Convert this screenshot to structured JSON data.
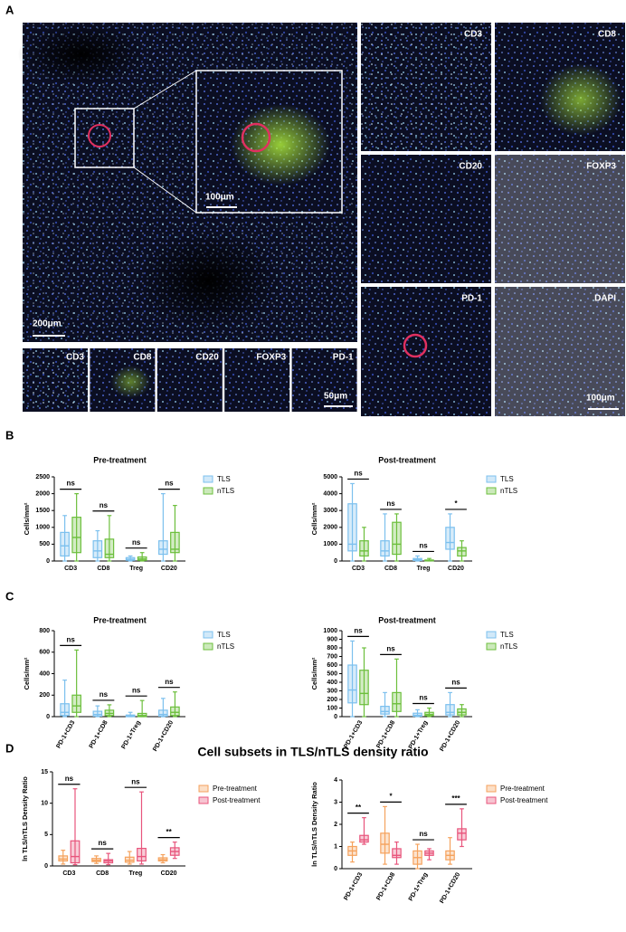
{
  "panel_labels": [
    "A",
    "B",
    "C",
    "D"
  ],
  "images": {
    "main_scale": "200μm",
    "inset_scale": "100μm",
    "strip": [
      "CD3",
      "CD8",
      "CD20",
      "FOXP3",
      "PD-1"
    ],
    "strip_scale": "50μm",
    "grid": [
      "CD3",
      "CD8",
      "CD20",
      "FOXP3",
      "PD-1",
      "DAPI"
    ],
    "grid_scale": "100μm"
  },
  "section_title": "Cell subsets in TLS/nTLS density ratio",
  "chart_data": [
    {
      "type": "box",
      "title": "Pre-treatment",
      "y_label": "Cells/mm²",
      "categories": [
        "CD3",
        "CD8",
        "Treg",
        "CD20"
      ],
      "rotate_labels": false,
      "legend": "right",
      "series": [
        {
          "name": "TLS",
          "color": "#7cc0ee",
          "values": [
            [
              0,
              150,
              450,
              850,
              1350
            ],
            [
              0,
              100,
              300,
              600,
              900
            ],
            [
              0,
              20,
              50,
              100,
              150
            ],
            [
              0,
              200,
              350,
              600,
              2000
            ]
          ]
        },
        {
          "name": "nTLS",
          "color": "#6cbf3c",
          "values": [
            [
              0,
              250,
              700,
              1300,
              2000
            ],
            [
              0,
              100,
              200,
              650,
              1350
            ],
            [
              0,
              20,
              60,
              120,
              250
            ],
            [
              0,
              250,
              350,
              850,
              1650
            ]
          ]
        }
      ],
      "ylim": [
        0,
        2500
      ],
      "yticks": [
        0,
        500,
        1000,
        1500,
        2000,
        2500
      ],
      "annotations": [
        "ns",
        "ns",
        "ns",
        "ns"
      ]
    },
    {
      "type": "box",
      "title": "Post-treatment",
      "y_label": "Cells/mm²",
      "categories": [
        "CD3",
        "CD8",
        "Treg",
        "CD20"
      ],
      "rotate_labels": false,
      "legend": "right",
      "series": [
        {
          "name": "TLS",
          "color": "#7cc0ee",
          "values": [
            [
              0,
              600,
              1000,
              3400,
              4600
            ],
            [
              0,
              300,
              600,
              1200,
              2800
            ],
            [
              0,
              30,
              80,
              150,
              300
            ],
            [
              0,
              700,
              1100,
              2000,
              2800
            ]
          ]
        },
        {
          "name": "nTLS",
          "color": "#6cbf3c",
          "values": [
            [
              0,
              300,
              600,
              1200,
              2000
            ],
            [
              0,
              400,
              1000,
              2300,
              2800
            ],
            [
              0,
              10,
              30,
              60,
              150
            ],
            [
              0,
              300,
              600,
              800,
              1200
            ]
          ]
        }
      ],
      "ylim": [
        0,
        5000
      ],
      "yticks": [
        0,
        1000,
        2000,
        3000,
        4000,
        5000
      ],
      "annotations": [
        "ns",
        "ns",
        "ns",
        "*"
      ]
    },
    {
      "type": "box",
      "title": "Pre-treatment",
      "y_label": "Cells/mm²",
      "categories": [
        "PD-1+CD3",
        "PD-1+CD8",
        "PD-1+Treg",
        "PD-1+CD20"
      ],
      "rotate_labels": true,
      "legend": "right",
      "series": [
        {
          "name": "TLS",
          "color": "#7cc0ee",
          "values": [
            [
              0,
              10,
              40,
              120,
              340
            ],
            [
              0,
              5,
              20,
              50,
              100
            ],
            [
              0,
              0,
              5,
              15,
              40
            ],
            [
              0,
              5,
              20,
              60,
              170
            ]
          ]
        },
        {
          "name": "nTLS",
          "color": "#6cbf3c",
          "values": [
            [
              0,
              40,
              100,
              200,
              620
            ],
            [
              0,
              10,
              30,
              60,
              110
            ],
            [
              0,
              0,
              10,
              30,
              150
            ],
            [
              0,
              10,
              40,
              90,
              230
            ]
          ]
        }
      ],
      "ylim": [
        0,
        800
      ],
      "yticks": [
        0,
        200,
        400,
        600,
        800
      ],
      "annotations": [
        "ns",
        "ns",
        "ns",
        "ns"
      ]
    },
    {
      "type": "box",
      "title": "Post-treatment",
      "y_label": "Cells/mm²",
      "categories": [
        "PD-1+CD3",
        "PD-1+CD8",
        "PD-1+Treg",
        "PD-1+CD20"
      ],
      "rotate_labels": true,
      "legend": "right",
      "series": [
        {
          "name": "TLS",
          "color": "#7cc0ee",
          "values": [
            [
              0,
              160,
              310,
              600,
              880
            ],
            [
              0,
              30,
              60,
              120,
              280
            ],
            [
              0,
              5,
              15,
              40,
              80
            ],
            [
              0,
              20,
              50,
              140,
              280
            ]
          ]
        },
        {
          "name": "nTLS",
          "color": "#6cbf3c",
          "values": [
            [
              0,
              140,
              270,
              540,
              800
            ],
            [
              0,
              60,
              150,
              280,
              670
            ],
            [
              0,
              10,
              25,
              50,
              100
            ],
            [
              0,
              20,
              50,
              90,
              140
            ]
          ]
        }
      ],
      "ylim": [
        0,
        1000
      ],
      "yticks": [
        0,
        100,
        200,
        300,
        400,
        500,
        600,
        700,
        800,
        900,
        1000
      ],
      "annotations": [
        "ns",
        "ns",
        "ns",
        "ns"
      ]
    },
    {
      "type": "box",
      "y_label": "ln TLS/nTLS Density Ratio",
      "categories": [
        "CD3",
        "CD8",
        "Treg",
        "CD20"
      ],
      "rotate_labels": false,
      "legend": "right",
      "series": [
        {
          "name": "Pre-treatment",
          "color": "#f5a25d",
          "values": [
            [
              0.3,
              0.8,
              1.1,
              1.6,
              2.5
            ],
            [
              0.4,
              0.7,
              0.9,
              1.2,
              1.6
            ],
            [
              0.3,
              0.6,
              0.9,
              1.4,
              2.3
            ],
            [
              0.5,
              0.8,
              1.0,
              1.3,
              1.8
            ]
          ]
        },
        {
          "name": "Post-treatment",
          "color": "#e8557c",
          "values": [
            [
              0.2,
              0.5,
              1.5,
              4,
              12.3
            ],
            [
              0.2,
              0.5,
              0.8,
              1,
              2
            ],
            [
              0.3,
              0.8,
              1.5,
              2.8,
              11.8
            ],
            [
              1.2,
              1.7,
              2.3,
              2.9,
              3.8
            ]
          ]
        }
      ],
      "ylim": [
        0,
        15
      ],
      "yticks": [
        0,
        5,
        10,
        15
      ],
      "annotations": [
        "ns",
        "ns",
        "ns",
        "**"
      ]
    },
    {
      "type": "box",
      "y_label": "ln TLS/nTLS Density Ratio",
      "categories": [
        "PD-1+CD3",
        "PD-1+CD8",
        "PD-1+Treg",
        "PD-1+CD20"
      ],
      "rotate_labels": true,
      "legend": "right",
      "series": [
        {
          "name": "Pre-treatment",
          "color": "#f5a25d",
          "values": [
            [
              0.3,
              0.6,
              0.8,
              1.0,
              1.2
            ],
            [
              0.2,
              0.7,
              1.1,
              1.6,
              2.8
            ],
            [
              0,
              0.2,
              0.5,
              0.8,
              1.1
            ],
            [
              0.2,
              0.4,
              0.6,
              0.8,
              1.4
            ]
          ]
        },
        {
          "name": "Post-treatment",
          "color": "#e8557c",
          "values": [
            [
              1.1,
              1.2,
              1.3,
              1.5,
              2.3
            ],
            [
              0.2,
              0.5,
              0.6,
              0.9,
              1.2
            ],
            [
              0.4,
              0.6,
              0.7,
              0.8,
              0.9
            ],
            [
              1,
              1.3,
              1.6,
              1.8,
              2.7
            ]
          ]
        }
      ],
      "ylim": [
        0,
        4
      ],
      "yticks": [
        0,
        1,
        2,
        3,
        4
      ],
      "annotations": [
        "**",
        "*",
        "ns",
        "***"
      ]
    }
  ]
}
